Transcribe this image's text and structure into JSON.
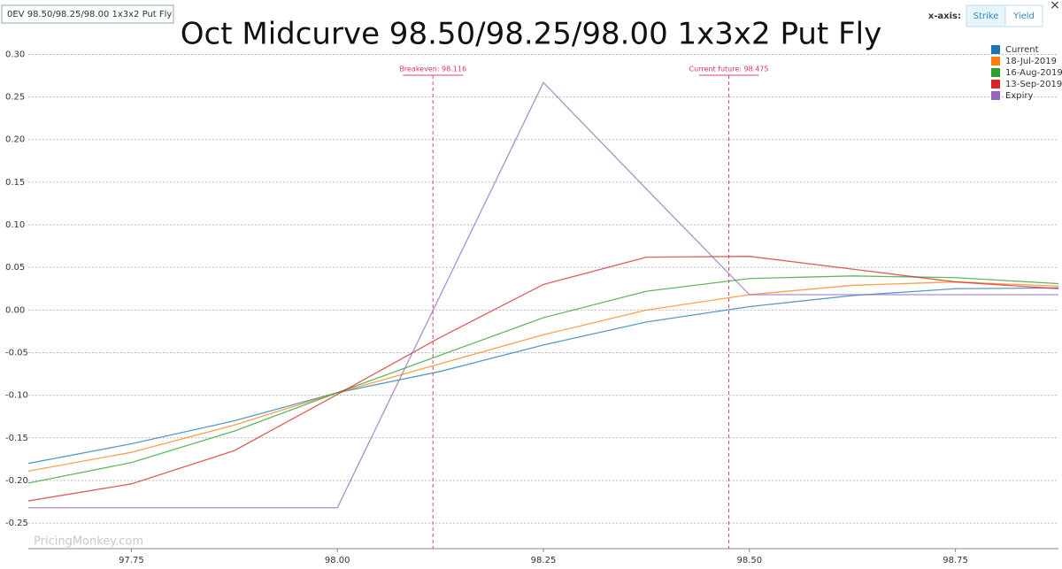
{
  "ui": {
    "tab": "0EV 98.50/98.25/98.00 1x3x2 Put Fly",
    "axis_label": "x-axis:",
    "buttons": [
      "Strike",
      "Yield"
    ],
    "close": "×",
    "watermark": "PricingMonkey.com"
  },
  "chart_data": {
    "type": "line",
    "title": "Oct Midcurve 98.50/98.25/98.00 1x3x2 Put Fly",
    "x": [
      97.625,
      97.75,
      97.875,
      98.0,
      98.125,
      98.25,
      98.375,
      98.5,
      98.625,
      98.75,
      98.875
    ],
    "series": [
      {
        "name": "Current",
        "color": "#1f77b4",
        "values": [
          -0.18,
          -0.157,
          -0.13,
          -0.097,
          -0.072,
          -0.041,
          -0.014,
          0.004,
          0.017,
          0.025,
          0.026
        ]
      },
      {
        "name": "18-Jul-2019",
        "color": "#ff7f0e",
        "values": [
          -0.189,
          -0.167,
          -0.135,
          -0.097,
          -0.063,
          -0.029,
          0.0,
          0.018,
          0.029,
          0.033,
          0.028
        ]
      },
      {
        "name": "16-Aug-2019",
        "color": "#2ca02c",
        "values": [
          -0.203,
          -0.179,
          -0.142,
          -0.097,
          -0.053,
          -0.009,
          0.022,
          0.037,
          0.04,
          0.038,
          0.031
        ]
      },
      {
        "name": "13-Sep-2019",
        "color": "#d62728",
        "values": [
          -0.224,
          -0.204,
          -0.165,
          -0.099,
          -0.032,
          0.03,
          0.062,
          0.063,
          0.048,
          0.033,
          0.025
        ]
      },
      {
        "name": "Expiry",
        "color": "#9467bd",
        "values": [
          -0.232,
          -0.232,
          -0.232,
          -0.232,
          0.0175,
          0.267,
          0.142,
          0.018,
          0.018,
          0.018,
          0.018
        ]
      }
    ],
    "xlim": [
      97.625,
      98.875
    ],
    "xticks": [
      97.75,
      {
        "value": 98.0,
        "label": "98.00"
      },
      98.25,
      {
        "value": 98.5,
        "label": "98.50"
      },
      98.75
    ],
    "ylim": [
      -0.28,
      0.315
    ],
    "yticks": [
      {
        "value": 0.3,
        "label": "0.30"
      },
      0.25,
      {
        "value": 0.2,
        "label": "0.20"
      },
      0.15,
      {
        "value": 0.1,
        "label": "0.10"
      },
      0.05,
      {
        "value": 0,
        "label": "0.00"
      },
      -0.05,
      {
        "value": -0.1,
        "label": "-0.10"
      },
      -0.15,
      {
        "value": -0.2,
        "label": "-0.20"
      },
      -0.25
    ],
    "grid": true,
    "legend": "top-right",
    "vlines": [
      {
        "label": "Breakeven: 98.116",
        "x": 98.116
      },
      {
        "label": "Current future: 98.475",
        "x": 98.475
      }
    ]
  }
}
